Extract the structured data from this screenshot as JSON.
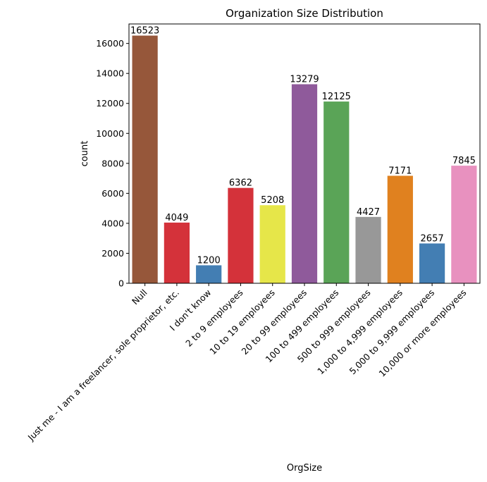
{
  "chart_data": {
    "type": "bar",
    "title": "Organization Size Distribution",
    "xlabel": "OrgSize",
    "ylabel": "count",
    "ylim": [
      0,
      17300
    ],
    "yticks": [
      0,
      2000,
      4000,
      6000,
      8000,
      10000,
      12000,
      14000,
      16000
    ],
    "grid": false,
    "categories": [
      "Null",
      "Just me - I am a freelancer, sole proprietor, etc.",
      "I don't know",
      "2 to 9 employees",
      "10 to 19 employees",
      "20 to 99 employees",
      "100 to 499 employees",
      "500 to 999 employees",
      "1,000 to 4,999 employees",
      "5,000 to 9,999 employees",
      "10,000 or more employees"
    ],
    "values": [
      16523,
      4049,
      1200,
      6362,
      5208,
      13279,
      12125,
      4427,
      7171,
      2657,
      7845
    ],
    "colors": [
      "#96573a",
      "#d4323a",
      "#437eb3",
      "#d4323a",
      "#e6e649",
      "#8f5a9b",
      "#5aa457",
      "#989898",
      "#e0811f",
      "#437eb3",
      "#e891bf"
    ]
  }
}
